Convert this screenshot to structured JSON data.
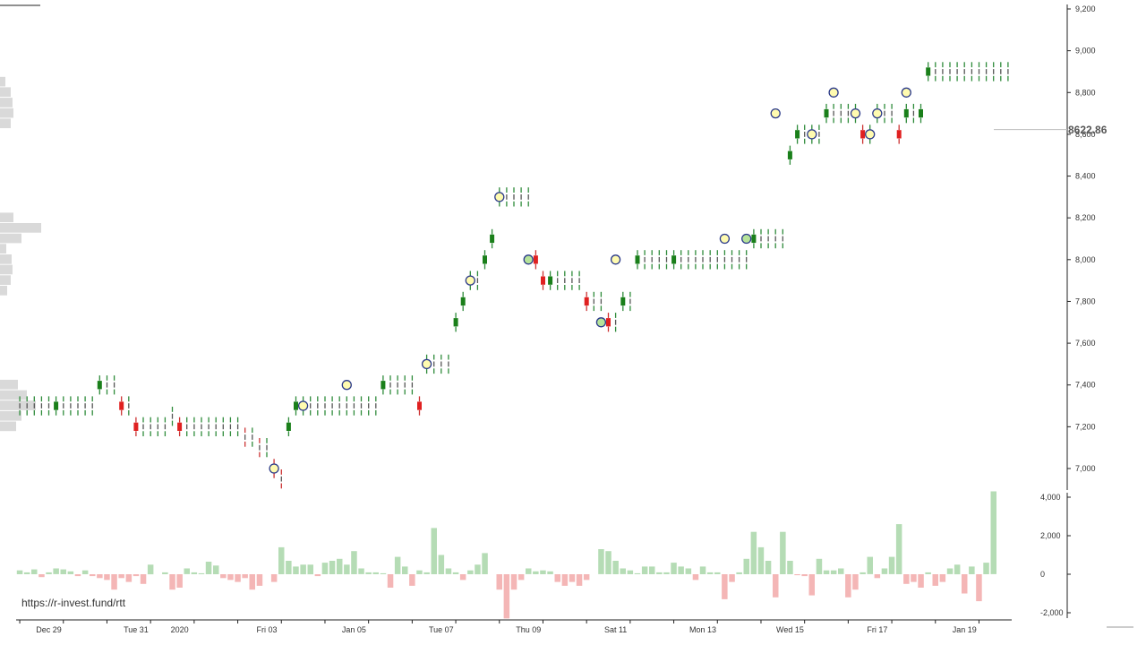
{
  "chart_data": {
    "type": "point-and-figure",
    "watermark": "https://r-invest.fund/rtt",
    "last_price_label": "8622.86",
    "last_price": 8622.86,
    "price_axis": {
      "ylim": [
        6880,
        9240
      ],
      "ticks": [
        7000,
        7200,
        7400,
        7600,
        7800,
        8000,
        8200,
        8400,
        8600,
        8800,
        9000,
        9200
      ],
      "tick_labels": [
        "7,000",
        "7,200",
        "7,400",
        "7,600",
        "7,800",
        "8,000",
        "8,200",
        "8,400",
        "8,600",
        "8,800",
        "9,000",
        "9,200"
      ]
    },
    "volume_axis": {
      "ylim": [
        -2000,
        4000
      ],
      "ticks": [
        4000,
        2000,
        0,
        -2000
      ],
      "tick_labels": [
        "4,000",
        "2,000",
        "0",
        "-2,000"
      ]
    },
    "x_axis": {
      "bar_count": 137,
      "labels": [
        {
          "text": "Dec 29",
          "index": 4
        },
        {
          "text": "Tue 31",
          "index": 16
        },
        {
          "text": "2020",
          "index": 22
        },
        {
          "text": "Fri 03",
          "index": 34
        },
        {
          "text": "Jan 05",
          "index": 46
        },
        {
          "text": "Tue 07",
          "index": 58
        },
        {
          "text": "Thu 09",
          "index": 70
        },
        {
          "text": "Sat 11",
          "index": 82
        },
        {
          "text": "Mon 13",
          "index": 94
        },
        {
          "text": "Wed 15",
          "index": 106
        },
        {
          "text": "Fri 17",
          "index": 118
        },
        {
          "text": "Jan 19",
          "index": 130
        }
      ]
    },
    "closes": [
      7300,
      7300,
      7300,
      7300,
      7300,
      7300,
      7300,
      7300,
      7300,
      7300,
      7300,
      7400,
      7400,
      7400,
      7300,
      7300,
      7200,
      7200,
      7200,
      7200,
      7200,
      7250,
      7200,
      7200,
      7200,
      7200,
      7200,
      7200,
      7200,
      7200,
      7200,
      7150,
      7150,
      7100,
      7100,
      7000,
      6950,
      7200,
      7300,
      7300,
      7300,
      7300,
      7300,
      7300,
      7300,
      7300,
      7300,
      7300,
      7300,
      7300,
      7400,
      7400,
      7400,
      7400,
      7400,
      7300,
      7500,
      7500,
      7500,
      7500,
      7700,
      7800,
      7900,
      7900,
      8000,
      8100,
      8300,
      8300,
      8300,
      8300,
      8300,
      8000,
      7900,
      7900,
      7900,
      7900,
      7900,
      7900,
      7800,
      7800,
      7800,
      7700,
      7700,
      7800,
      7800,
      8000,
      8000,
      8000,
      8000,
      8000,
      8000,
      8000,
      8000,
      8000,
      8000,
      8000,
      8000,
      8000,
      8000,
      8000,
      8000,
      8100,
      8100,
      8100,
      8100,
      8100,
      8500,
      8600,
      8600,
      8600,
      8600,
      8700,
      8700,
      8700,
      8700,
      8700,
      8600,
      8600,
      8700,
      8700,
      8700,
      8600,
      8700,
      8700,
      8700,
      8900,
      8900,
      8900,
      8900,
      8900,
      8900,
      8900,
      8900,
      8900,
      8900,
      8900,
      8900,
      8900,
      9100,
      8600,
      8600
    ],
    "signals": [
      {
        "index": 35,
        "price": 7000,
        "color": "#fffbb0"
      },
      {
        "index": 39,
        "price": 7300,
        "color": "#fffbb0"
      },
      {
        "index": 45,
        "price": 7400,
        "color": "#fffbb0"
      },
      {
        "index": 56,
        "price": 7500,
        "color": "#fffbb0"
      },
      {
        "index": 62,
        "price": 7900,
        "color": "#fffbb0"
      },
      {
        "index": 66,
        "price": 8300,
        "color": "#fffbb0"
      },
      {
        "index": 70,
        "price": 8000,
        "color": "#b6e39a"
      },
      {
        "index": 80,
        "price": 7700,
        "color": "#b6e39a"
      },
      {
        "index": 82,
        "price": 8000,
        "color": "#fffbb0"
      },
      {
        "index": 97,
        "price": 8100,
        "color": "#fffbb0"
      },
      {
        "index": 100,
        "price": 8100,
        "color": "#b6e39a"
      },
      {
        "index": 104,
        "price": 8700,
        "color": "#fffbb0"
      },
      {
        "index": 109,
        "price": 8600,
        "color": "#fffbb0"
      },
      {
        "index": 112,
        "price": 8800,
        "color": "#fffbb0"
      },
      {
        "index": 115,
        "price": 8700,
        "color": "#fffbb0"
      },
      {
        "index": 117,
        "price": 8600,
        "color": "#fffbb0"
      },
      {
        "index": 118,
        "price": 8700,
        "color": "#fffbb0"
      },
      {
        "index": 122,
        "price": 8800,
        "color": "#fffbb0"
      }
    ],
    "volume": [
      200,
      100,
      250,
      -150,
      100,
      300,
      250,
      150,
      -100,
      200,
      -100,
      -200,
      -300,
      -800,
      -200,
      -400,
      -100,
      -500,
      500,
      0,
      100,
      -800,
      -700,
      300,
      100,
      50,
      650,
      450,
      -200,
      -300,
      -400,
      -200,
      -800,
      -600,
      0,
      -400,
      1400,
      700,
      400,
      500,
      500,
      -100,
      600,
      700,
      800,
      500,
      1200,
      300,
      100,
      100,
      50,
      -700,
      900,
      400,
      -600,
      200,
      100,
      2400,
      1000,
      300,
      100,
      -300,
      200,
      500,
      1100,
      0,
      -800,
      -2300,
      -800,
      -300,
      300,
      150,
      200,
      150,
      -400,
      -600,
      -400,
      -600,
      -300,
      0,
      1300,
      1200,
      700,
      300,
      200,
      50,
      400,
      400,
      100,
      100,
      600,
      400,
      300,
      -300,
      400,
      100,
      100,
      -1300,
      -400,
      100,
      800,
      2200,
      1400,
      700,
      -1200,
      2200,
      700,
      -50,
      -100,
      -1100,
      800,
      200,
      200,
      300,
      -1200,
      -800,
      100,
      900,
      -200,
      300,
      900,
      2600,
      -500,
      -400,
      -700,
      100,
      -600,
      -400,
      300,
      500,
      -1000,
      400,
      -1400,
      600,
      4300,
      0,
      0
    ],
    "volume_profile": [
      {
        "price": 8850,
        "width": 6
      },
      {
        "price": 8800,
        "width": 12
      },
      {
        "price": 8750,
        "width": 14
      },
      {
        "price": 8700,
        "width": 15
      },
      {
        "price": 8650,
        "width": 12
      },
      {
        "price": 8200,
        "width": 15
      },
      {
        "price": 8150,
        "width": 46
      },
      {
        "price": 8100,
        "width": 24
      },
      {
        "price": 8050,
        "width": 7
      },
      {
        "price": 8000,
        "width": 13
      },
      {
        "price": 7950,
        "width": 14
      },
      {
        "price": 7900,
        "width": 12
      },
      {
        "price": 7850,
        "width": 8
      },
      {
        "price": 7400,
        "width": 20
      },
      {
        "price": 7350,
        "width": 30
      },
      {
        "price": 7300,
        "width": 40
      },
      {
        "price": 7250,
        "width": 24
      },
      {
        "price": 7200,
        "width": 18
      }
    ],
    "colors": {
      "up_tick": "#2e8b3a",
      "down_tick": "#cc3333",
      "up_box": "#1a7f1a",
      "down_box": "#e02020",
      "volume_up": "#b5dcb5",
      "volume_down": "#f4b6b6",
      "profile": "#d9d9d9",
      "axis": "#222222",
      "signal_stroke": "#2b3a8a"
    }
  }
}
